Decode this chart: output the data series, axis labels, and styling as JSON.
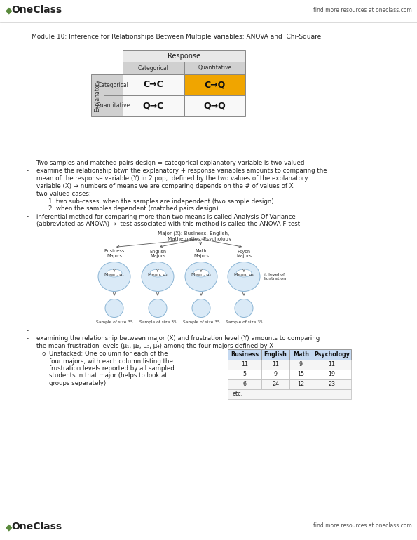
{
  "bg_color": "#ffffff",
  "oneclass_green": "#5a8a3c",
  "title": "Module 10: Inference for Relationships Between Multiple Variables: ANOVA and  Chi-Square",
  "table_cells": [
    [
      "C→C",
      "C→Q"
    ],
    [
      "Q→C",
      "Q→Q"
    ]
  ],
  "table_col_headers": [
    "Categorical",
    "Quantitative"
  ],
  "table_row_headers": [
    "Categorical",
    "Quantitative"
  ],
  "table_highlight_cell": [
    0,
    1
  ],
  "highlight_color": "#f0a500",
  "bullet1": "Two samples and matched pairs design = categorical explanatory variable is two-valued",
  "bullet2_lines": [
    "examine the relationship btwn the explanatory + response variables amounts to comparing the",
    "mean of the response variable (Y) in 2 pop,  defined by the two values of the explanatory",
    "variable (X) → numbers of means we are comparing depends on the # of values of X"
  ],
  "bullet3": "two-valued cases:",
  "sub1": "two sub-cases, when the samples are independent (two sample design)",
  "sub2": "when the samples dependent (matched pairs design)",
  "bullet4_lines": [
    "inferential method for comparing more than two means is called Analysis Of Variance",
    "(abbreviated as ANOVA) →  test associated with this method is called the ANOVA F-test"
  ],
  "diag_title": "Major (X): Business, English,",
  "diag_title2": "Mathematics, Psychology",
  "diag_groups": [
    "Business\nMajors",
    "English\nMajors",
    "Math\nMajors",
    "Psych\nMajors"
  ],
  "diag_means": [
    "Y\nMean: μ₁",
    "Y\nMean: μ₂",
    "Y\nMean: μ₃",
    "Y\nMean: μ₄"
  ],
  "diag_ylabel": "Y: level of\nfrustration",
  "diag_sample": "Sample of size 35",
  "bottom_bullet_lines": [
    "examining the relationship between major (X) and frustration level (Y) amounts to comparing",
    "the mean frustration levels (μ₁, μ₂, μ₃, μ₄) among the four majors defined by X"
  ],
  "sub_o_lines": [
    "Unstacked: One column for each of the",
    "four majors, with each column listing the",
    "frustration levels reported by all sampled",
    "students in that major (helps to look at",
    "groups separately)"
  ],
  "dt_headers": [
    "Business",
    "English",
    "Math",
    "Psychology"
  ],
  "dt_rows": [
    [
      "11",
      "11",
      "9",
      "11"
    ],
    [
      "5",
      "9",
      "15",
      "19"
    ],
    [
      "6",
      "24",
      "12",
      "23"
    ]
  ],
  "dt_etc": "etc.",
  "sep_color": "#cccccc",
  "text_color": "#222222",
  "gray_dark": "#d0d0d0",
  "gray_light": "#e8e8e8",
  "cell_bg": "#f8f8f8",
  "dt_header_bg": "#c5d9f1",
  "dt_border": "#999999"
}
